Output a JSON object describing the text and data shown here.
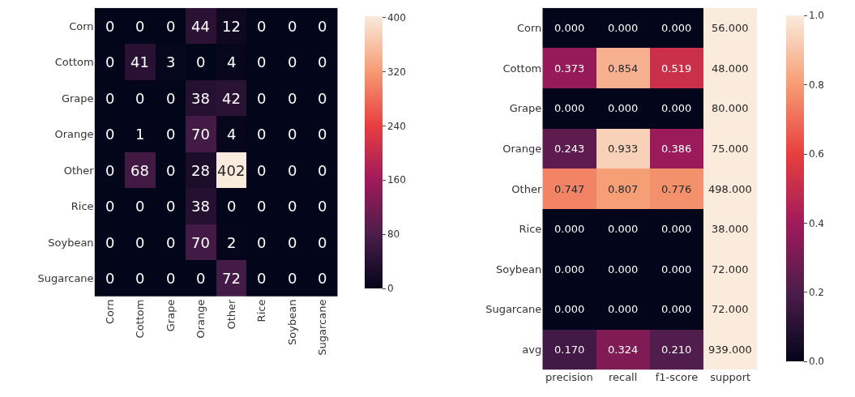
{
  "chart_data": [
    {
      "type": "heatmap",
      "categories": [
        "Corn",
        "Cottom",
        "Grape",
        "Orange",
        "Other",
        "Rice",
        "Soybean",
        "Sugarcane"
      ],
      "y_categories": [
        "Corn",
        "Cottom",
        "Grape",
        "Orange",
        "Other",
        "Rice",
        "Soybean",
        "Sugarcane"
      ],
      "cells": [
        [
          0,
          0,
          0,
          44,
          12,
          0,
          0,
          0
        ],
        [
          0,
          41,
          3,
          0,
          4,
          0,
          0,
          0
        ],
        [
          0,
          0,
          0,
          38,
          42,
          0,
          0,
          0
        ],
        [
          0,
          1,
          0,
          70,
          4,
          0,
          0,
          0
        ],
        [
          0,
          68,
          0,
          28,
          402,
          0,
          0,
          0
        ],
        [
          0,
          0,
          0,
          38,
          0,
          0,
          0,
          0
        ],
        [
          0,
          0,
          0,
          70,
          2,
          0,
          0,
          0
        ],
        [
          0,
          0,
          0,
          0,
          72,
          0,
          0,
          0
        ]
      ],
      "data_labels": true,
      "clim": [
        0,
        402
      ],
      "cticks": [
        0,
        80,
        160,
        240,
        320,
        400
      ]
    },
    {
      "type": "heatmap",
      "categories": [
        "precision",
        "recall",
        "f1-score",
        "support"
      ],
      "y_categories": [
        "Corn",
        "Cottom",
        "Grape",
        "Orange",
        "Other",
        "Rice",
        "Soybean",
        "Sugarcane",
        "avg"
      ],
      "cells": [
        [
          0,
          0,
          0,
          56
        ],
        [
          0.373,
          0.854,
          0.519,
          48
        ],
        [
          0,
          0,
          0,
          80
        ],
        [
          0.243,
          0.933,
          0.386,
          75
        ],
        [
          0.747,
          0.807,
          0.776,
          498
        ],
        [
          0,
          0,
          0,
          38
        ],
        [
          0,
          0,
          0,
          72
        ],
        [
          0,
          0,
          0,
          72
        ],
        [
          0.17,
          0.324,
          0.21,
          939
        ]
      ],
      "cell_labels": [
        [
          "0.000",
          "0.000",
          "0.000",
          "56.000"
        ],
        [
          "0.373",
          "0.854",
          "0.519",
          "48.000"
        ],
        [
          "0.000",
          "0.000",
          "0.000",
          "80.000"
        ],
        [
          "0.243",
          "0.933",
          "0.386",
          "75.000"
        ],
        [
          "0.747",
          "0.807",
          "0.776",
          "498.000"
        ],
        [
          "0.000",
          "0.000",
          "0.000",
          "38.000"
        ],
        [
          "0.000",
          "0.000",
          "0.000",
          "72.000"
        ],
        [
          "0.000",
          "0.000",
          "0.000",
          "72.000"
        ],
        [
          "0.170",
          "0.324",
          "0.210",
          "939.000"
        ]
      ],
      "clim": [
        0,
        1
      ],
      "cticks": [
        {
          "value": 0,
          "label": "0.0"
        },
        {
          "value": 0.2,
          "label": "0.2"
        },
        {
          "value": 0.4,
          "label": "0.4"
        },
        {
          "value": 0.6,
          "label": "0.6"
        },
        {
          "value": 0.8,
          "label": "0.8"
        },
        {
          "value": 1,
          "label": "1.0"
        }
      ]
    }
  ]
}
